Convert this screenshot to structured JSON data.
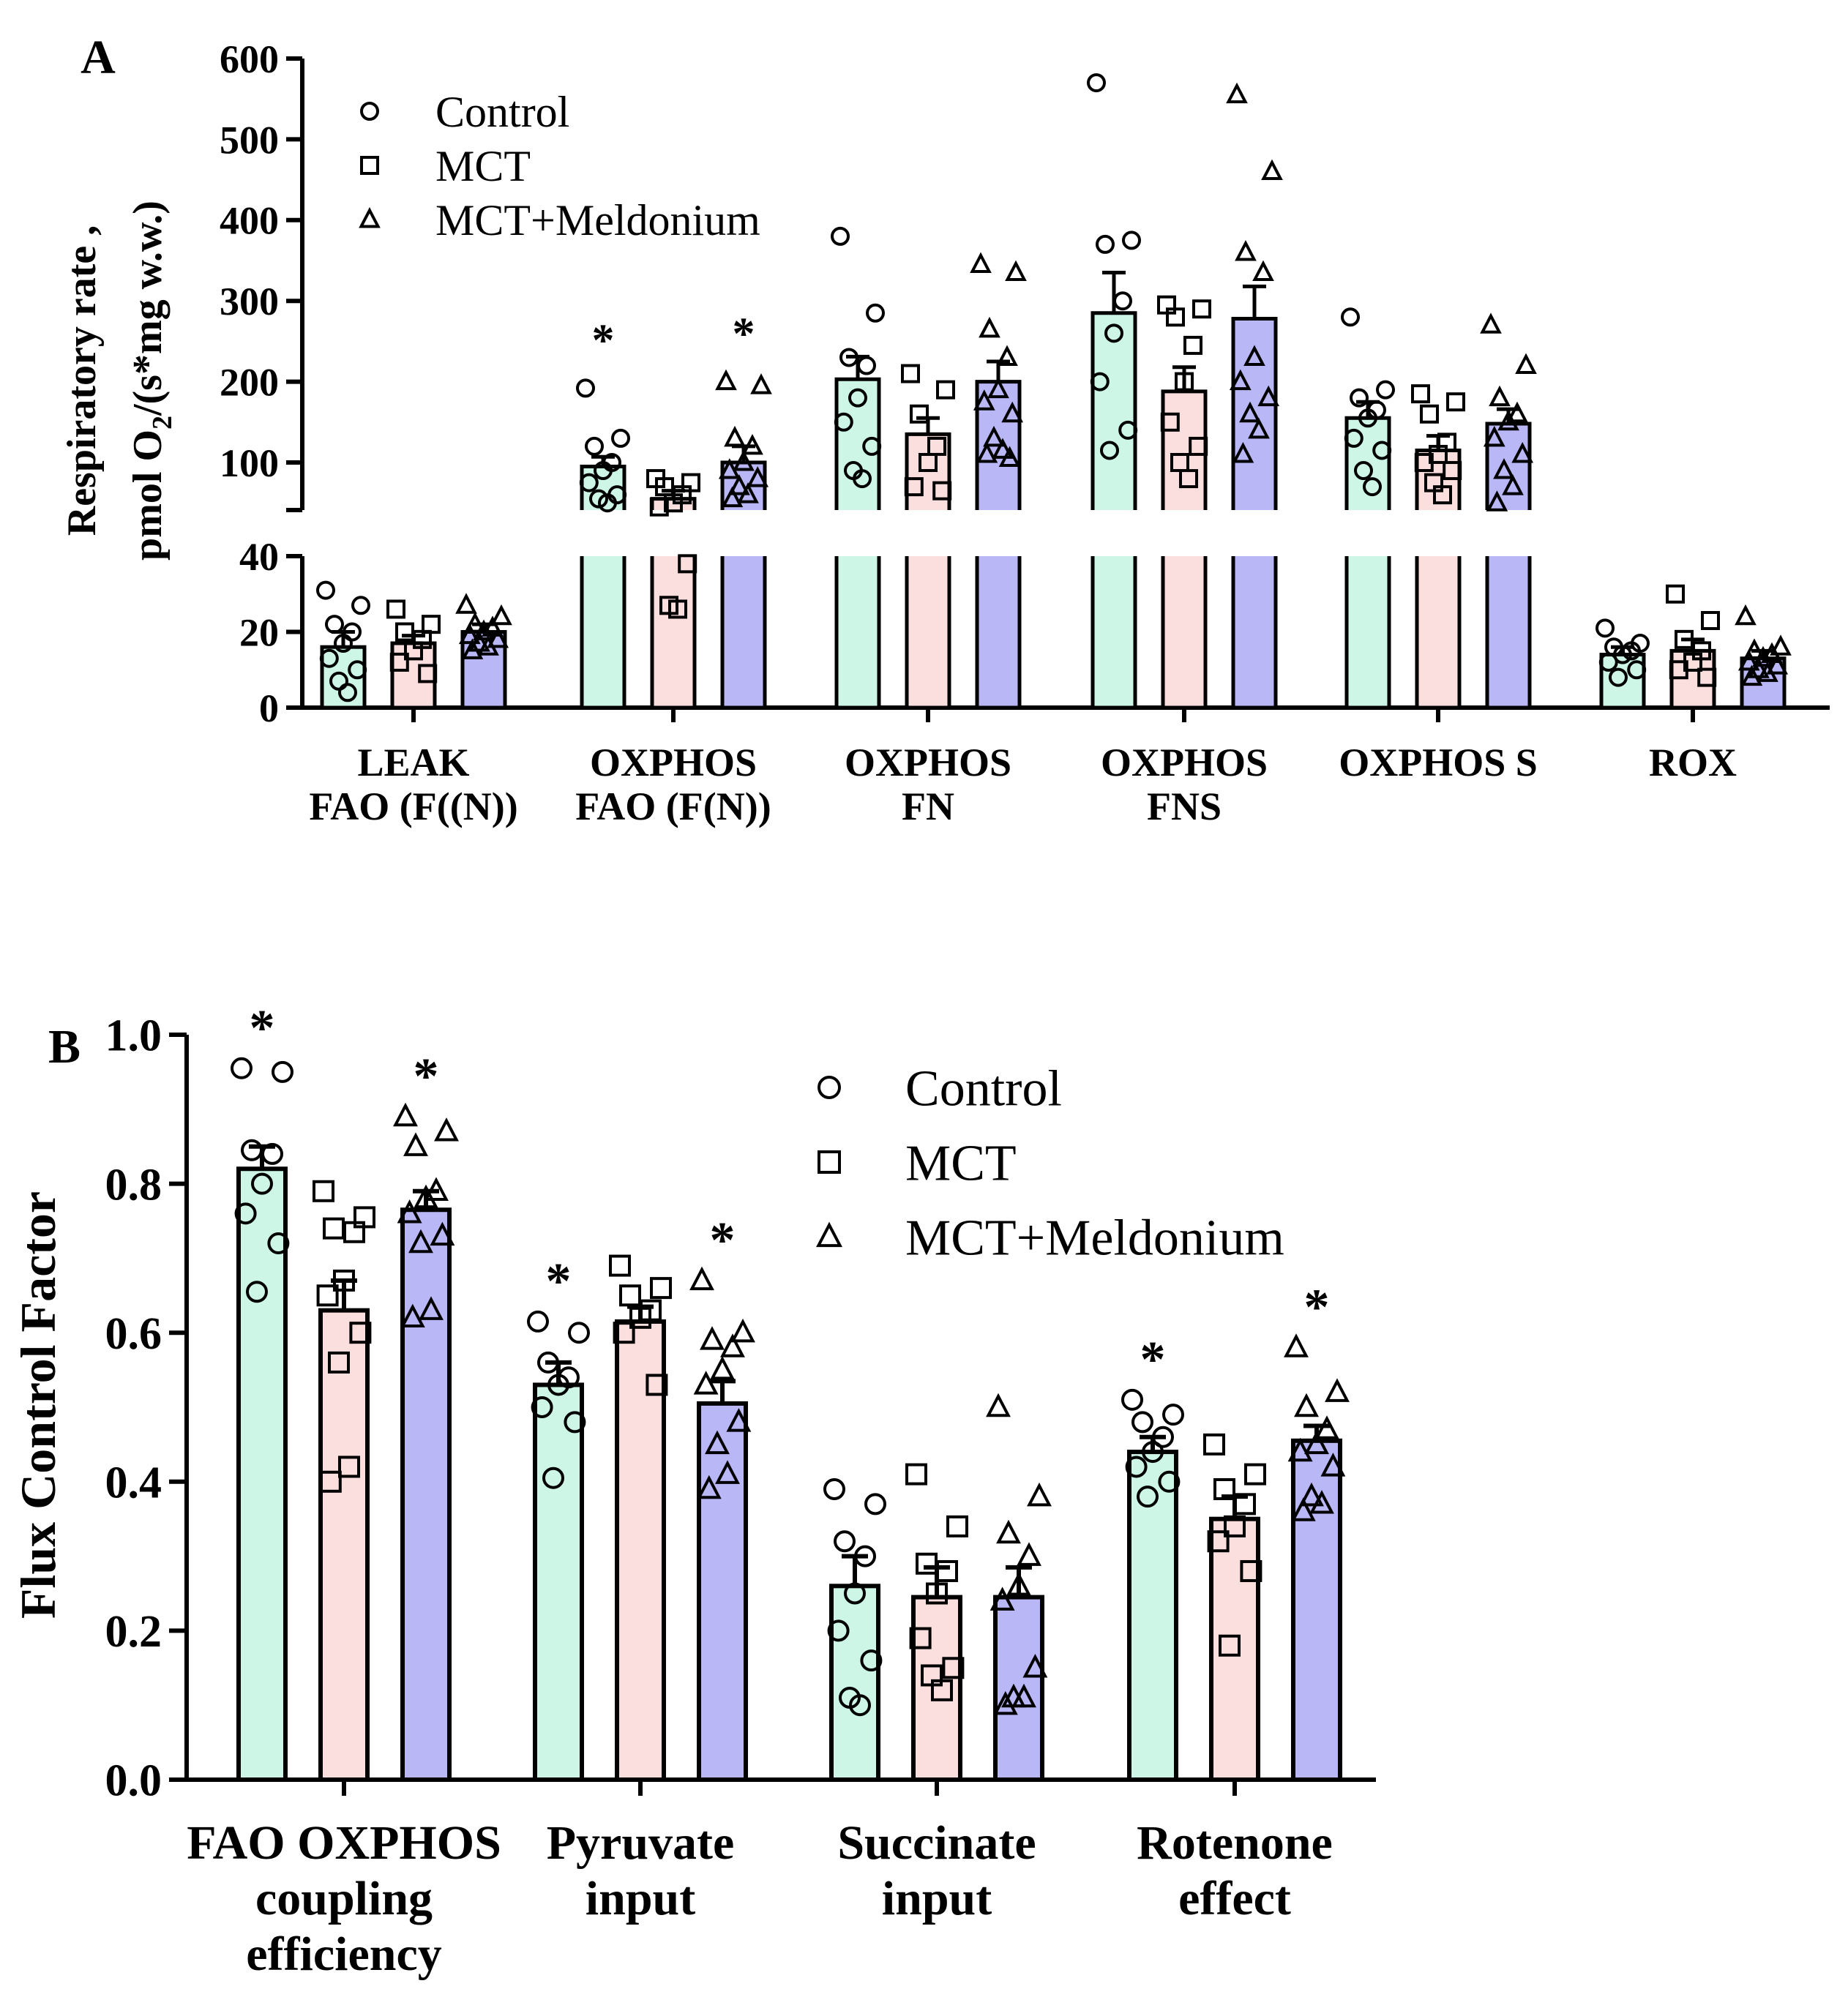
{
  "colors": {
    "control": "#cdf6e6",
    "mct": "#fadfde",
    "mct_meldonium": "#b9b7f6",
    "axis": "#000000"
  },
  "chart_data": [
    {
      "panel_label": "A",
      "type": "bar",
      "ylabel_line1": "Respiratory rate ,",
      "ylabel_line2_pre": "pmol O",
      "ylabel_line2_sub": "2",
      "ylabel_line2_post": "/(s*mg w.w.)",
      "ylim_lower": [
        0,
        40
      ],
      "ylim_upper": [
        40,
        600
      ],
      "yticks_lower": [
        "0",
        "20",
        "40"
      ],
      "yticks_upper": [
        "100",
        "200",
        "300",
        "400",
        "500",
        "600"
      ],
      "legend_position": "top-left",
      "categories": [
        [
          "LEAK",
          "FAO (F((N))"
        ],
        [
          "OXPHOS",
          "FAO (F(N))"
        ],
        [
          "OXPHOS",
          "FN"
        ],
        [
          "OXPHOS",
          "FNS"
        ],
        [
          "OXPHOS S"
        ],
        [
          "ROX"
        ]
      ],
      "series": [
        {
          "name": "Control",
          "marker": "circle",
          "values": [
            16,
            95,
            203,
            285,
            155,
            14
          ],
          "sem": [
            4,
            12,
            28,
            50,
            20,
            2
          ],
          "significant": [
            false,
            true,
            false,
            false,
            false,
            false
          ],
          "points": [
            [
              31,
              27,
              22,
              20,
              17,
              13,
              10,
              7,
              4
            ],
            [
              192,
              130,
              120,
              100,
              90,
              75,
              60,
              55,
              50
            ],
            [
              380,
              285,
              230,
              220,
              180,
              150,
              120,
              90,
              80
            ],
            [
              570,
              375,
              370,
              300,
              260,
              200,
              140,
              115
            ],
            [
              280,
              190,
              180,
              165,
              155,
              130,
              115,
              90,
              70
            ],
            [
              21,
              17,
              16,
              15,
              14,
              12,
              10,
              8
            ]
          ]
        },
        {
          "name": "MCT",
          "marker": "square",
          "values": [
            17,
            55,
            135,
            188,
            115,
            15
          ],
          "sem": [
            2,
            10,
            20,
            30,
            18,
            3
          ],
          "significant": [
            false,
            false,
            false,
            false,
            false,
            false
          ],
          "points": [
            [
              26,
              22,
              20,
              18,
              15,
              12,
              9
            ],
            [
              80,
              75,
              70,
              60,
              50,
              45,
              38,
              27,
              26
            ],
            [
              210,
              190,
              160,
              120,
              100,
              70,
              65
            ],
            [
              295,
              290,
              280,
              245,
              200,
              150,
              120,
              100,
              80
            ],
            [
              185,
              175,
              160,
              125,
              110,
              100,
              90,
              75,
              60
            ],
            [
              30,
              23,
              18,
              15,
              12,
              10,
              8
            ]
          ]
        },
        {
          "name": "MCT+Meldonium",
          "marker": "triangle",
          "values": [
            20,
            100,
            200,
            278,
            148,
            13
          ],
          "sem": [
            2,
            20,
            25,
            40,
            18,
            2
          ],
          "significant": [
            false,
            true,
            false,
            false,
            false,
            false
          ],
          "points": [
            [
              27,
              24,
              22,
              21,
              20,
              19,
              18,
              17,
              16,
              15
            ],
            [
              200,
              195,
              130,
              120,
              100,
              90,
              80,
              70,
              60,
              55
            ],
            [
              345,
              335,
              265,
              230,
              190,
              175,
              160,
              130,
              115,
              110,
              105
            ],
            [
              555,
              460,
              360,
              335,
              230,
              200,
              180,
              160,
              140,
              110
            ],
            [
              270,
              220,
              180,
              160,
              150,
              130,
              110,
              90,
              70,
              50
            ],
            [
              24,
              16,
              15,
              14,
              13,
              12,
              11,
              10,
              9,
              8
            ]
          ]
        }
      ]
    },
    {
      "panel_label": "B",
      "type": "bar",
      "ylabel": "Flux Control Factor",
      "ylim": [
        0,
        1.0
      ],
      "yticks": [
        "0.0",
        "0.2",
        "0.4",
        "0.6",
        "0.8",
        "1.0"
      ],
      "legend_position": "top-right",
      "categories": [
        [
          "FAO OXPHOS",
          "coupling",
          "efficiency"
        ],
        [
          "Pyruvate",
          "input"
        ],
        [
          "Succinate",
          "input"
        ],
        [
          "Rotenone",
          "effect"
        ]
      ],
      "series": [
        {
          "name": "Control",
          "marker": "circle",
          "values": [
            0.82,
            0.53,
            0.26,
            0.44
          ],
          "sem": [
            0.03,
            0.03,
            0.04,
            0.02
          ],
          "significant": [
            true,
            true,
            false,
            true
          ],
          "points": [
            [
              0.955,
              0.95,
              0.845,
              0.84,
              0.8,
              0.76,
              0.72,
              0.655
            ],
            [
              0.615,
              0.6,
              0.56,
              0.54,
              0.53,
              0.5,
              0.48,
              0.405
            ],
            [
              0.39,
              0.37,
              0.32,
              0.3,
              0.25,
              0.2,
              0.16,
              0.11,
              0.1
            ],
            [
              0.51,
              0.49,
              0.48,
              0.46,
              0.44,
              0.42,
              0.4,
              0.38
            ]
          ]
        },
        {
          "name": "MCT",
          "marker": "square",
          "values": [
            0.63,
            0.615,
            0.245,
            0.35
          ],
          "sem": [
            0.04,
            0.02,
            0.04,
            0.03
          ],
          "significant": [
            false,
            false,
            false,
            false
          ],
          "points": [
            [
              0.79,
              0.755,
              0.74,
              0.735,
              0.67,
              0.65,
              0.6,
              0.56,
              0.42,
              0.4
            ],
            [
              0.69,
              0.66,
              0.65,
              0.63,
              0.62,
              0.6,
              0.53
            ],
            [
              0.41,
              0.34,
              0.29,
              0.28,
              0.25,
              0.19,
              0.15,
              0.14,
              0.12
            ],
            [
              0.45,
              0.41,
              0.39,
              0.37,
              0.34,
              0.32,
              0.28,
              0.18
            ]
          ]
        },
        {
          "name": "MCT+Meldonium",
          "marker": "triangle",
          "values": [
            0.765,
            0.505,
            0.245,
            0.455
          ],
          "sem": [
            0.025,
            0.03,
            0.04,
            0.02
          ],
          "significant": [
            true,
            true,
            false,
            true
          ],
          "points": [
            [
              0.89,
              0.87,
              0.85,
              0.79,
              0.78,
              0.76,
              0.73,
              0.72,
              0.63,
              0.62
            ],
            [
              0.67,
              0.6,
              0.59,
              0.58,
              0.55,
              0.53,
              0.48,
              0.45,
              0.41,
              0.39
            ],
            [
              0.5,
              0.38,
              0.33,
              0.3,
              0.26,
              0.24,
              0.15,
              0.11,
              0.11,
              0.1
            ],
            [
              0.58,
              0.52,
              0.5,
              0.47,
              0.45,
              0.44,
              0.42,
              0.38,
              0.37,
              0.36
            ]
          ]
        }
      ]
    }
  ]
}
